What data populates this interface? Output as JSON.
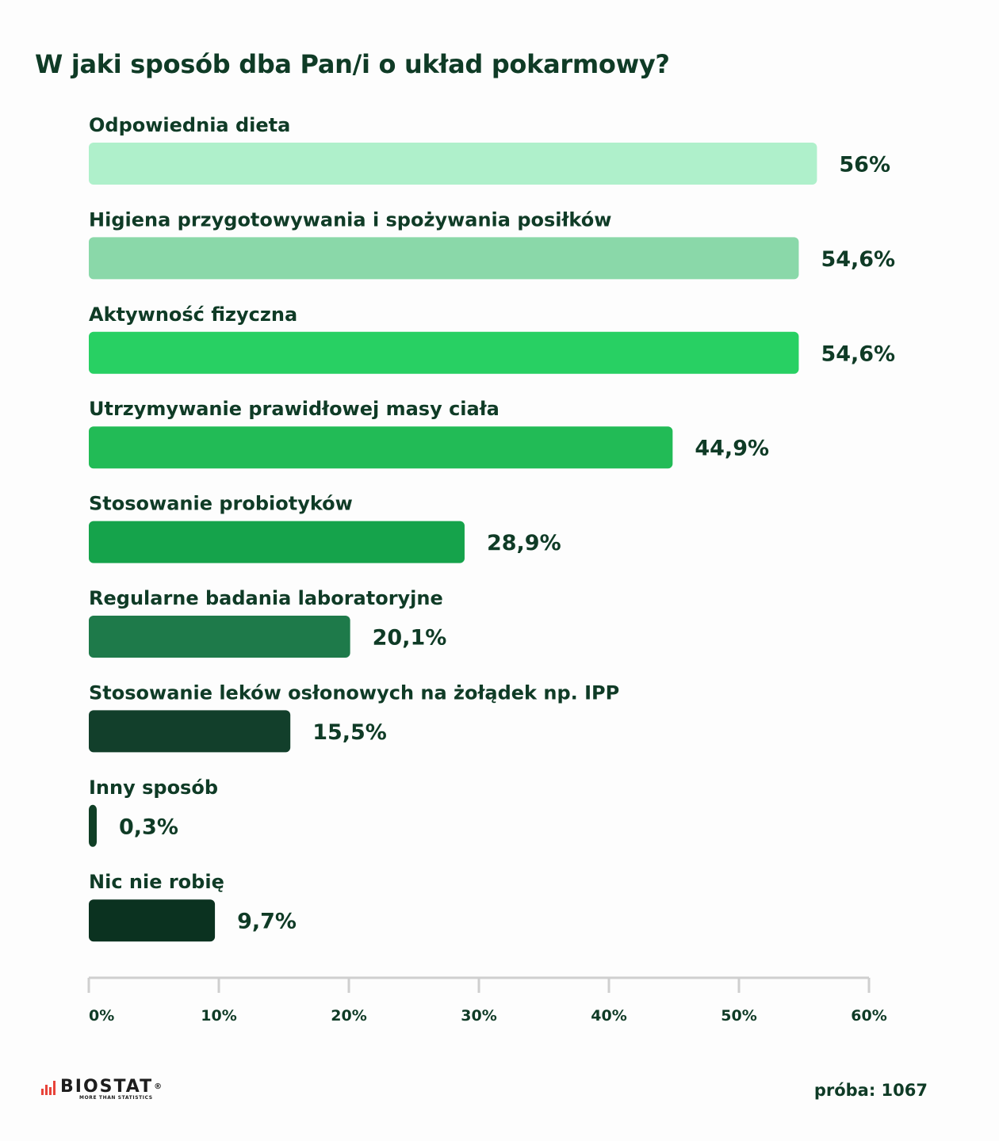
{
  "chart_data": {
    "type": "bar",
    "orientation": "horizontal",
    "title": "W jaki sposób dba Pan/i o układ pokarmowy?",
    "categories": [
      "Odpowiednia dieta",
      "Higiena przygotowywania i spożywania posiłków",
      "Aktywność fizyczna",
      "Utrzymywanie prawidłowej masy ciała",
      "Stosowanie probiotyków",
      "Regularne badania laboratoryjne",
      "Stosowanie leków osłonowych na żołądek np. IPP",
      "Inny sposób",
      "Nic nie robię"
    ],
    "values": [
      56,
      54.6,
      54.6,
      44.9,
      28.9,
      20.1,
      15.5,
      0.3,
      9.7
    ],
    "value_labels": [
      "56%",
      "54,6%",
      "54,6%",
      "44,9%",
      "28,9%",
      "20,1%",
      "15,5%",
      "0,3%",
      "9,7%"
    ],
    "colors": [
      "#aff0cb",
      "#8ad8a9",
      "#28d063",
      "#22bb56",
      "#15a34b",
      "#1e7a4a",
      "#123f2b",
      "#103f26",
      "#0b3220"
    ],
    "xlim": [
      0,
      60
    ],
    "xticks": [
      "0%",
      "10%",
      "20%",
      "30%",
      "40%",
      "50%",
      "60%"
    ],
    "grid": false,
    "legend": "none"
  },
  "footer": {
    "brand": "BIOSTAT",
    "brand_mark": "®",
    "tagline": "MORE THAN STATISTICS",
    "sample": "próba: 1067"
  },
  "colors": {
    "text": "#0f3b26",
    "axis": "#cfcfcf",
    "brand_red": "#e8443a"
  }
}
